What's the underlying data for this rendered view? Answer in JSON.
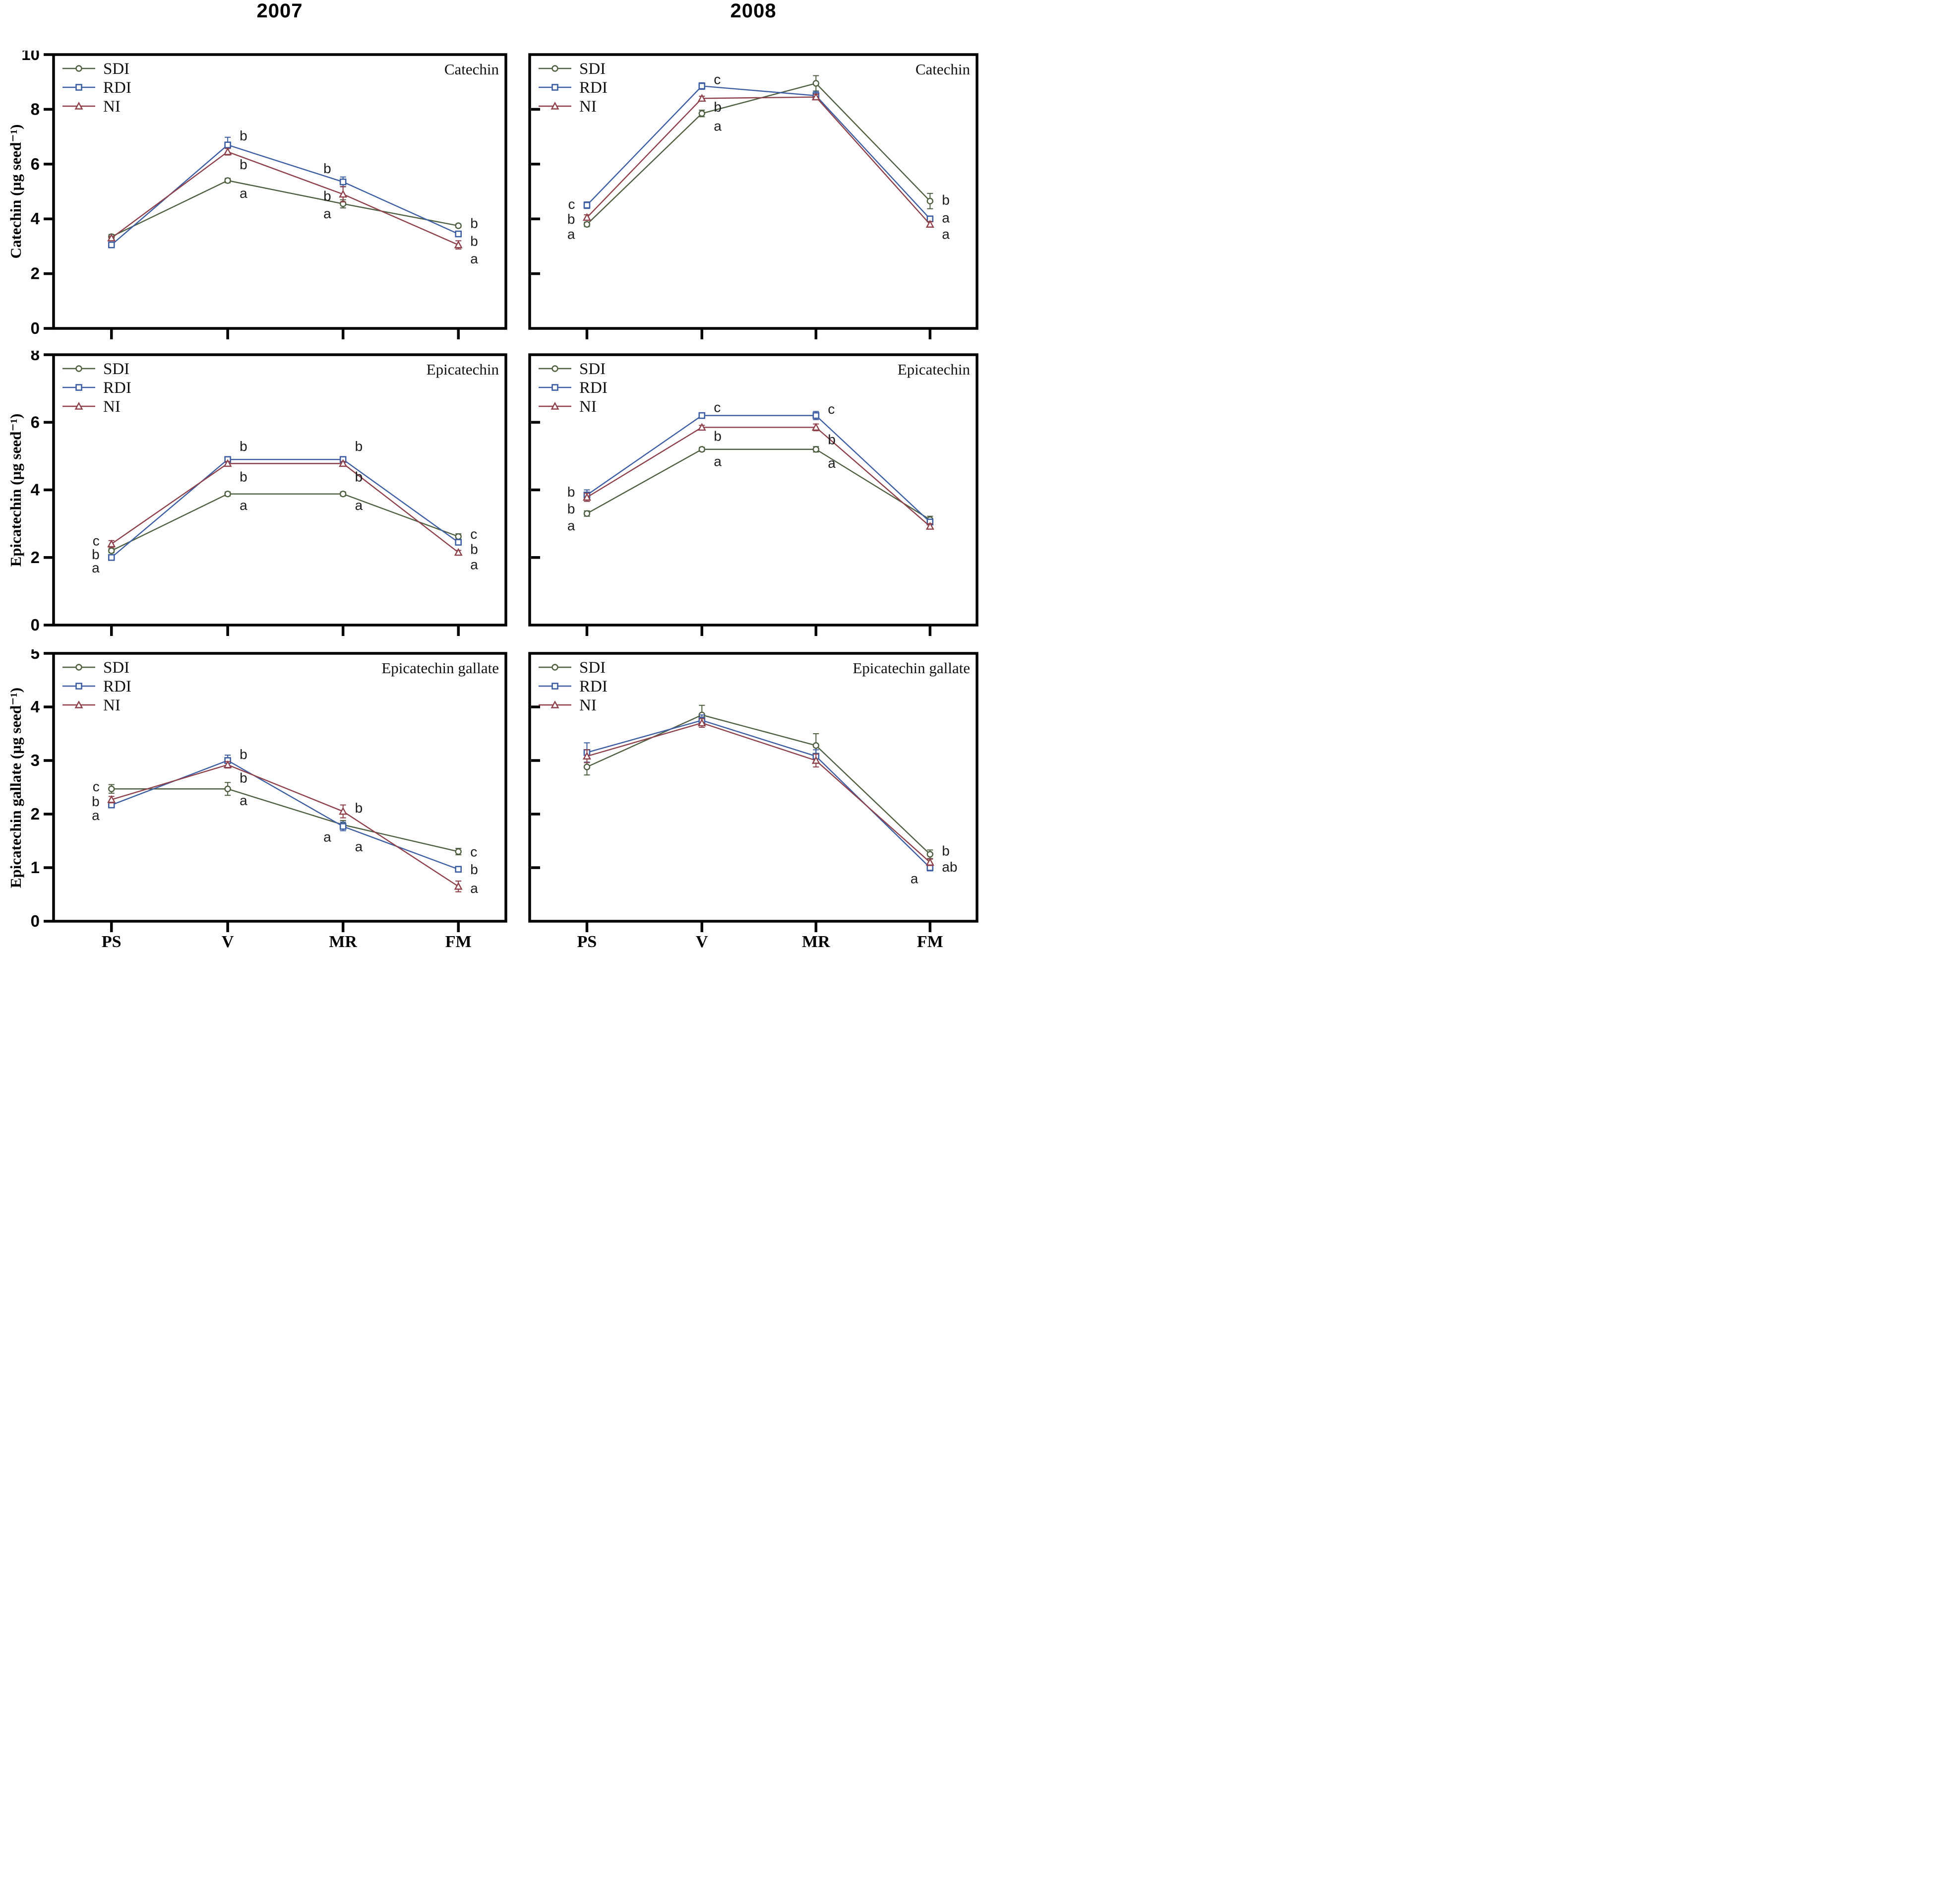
{
  "page": {
    "title_2007": "2007",
    "title_2008": "2008"
  },
  "colors": {
    "sdi": "#4d5e41",
    "rdi": "#3c5da2",
    "ni": "#8d4049",
    "axis": "#000000",
    "letter": "#1c1c1c"
  },
  "categories": [
    "PS",
    "V",
    "MR",
    "FM"
  ],
  "series_names": [
    "SDI",
    "RDI",
    "NI"
  ],
  "row_titles": [
    "Catechin (µg seed⁻¹)",
    "Epicatechin (µg seed⁻¹)",
    "Epicatechin gallate (µg seed⁻¹)"
  ],
  "chart_data": [
    {
      "id": "catechin-2007",
      "type": "line",
      "title": "Catechin",
      "year": "2007",
      "col": 0,
      "row": 0,
      "ylim": [
        0,
        10
      ],
      "yticks": [
        0,
        2,
        4,
        6,
        8,
        10
      ],
      "tick_side": "out",
      "show_ylabels": true,
      "show_xlabels": false,
      "categories": [
        "PS",
        "V",
        "MR",
        "FM"
      ],
      "series": [
        {
          "name": "SDI",
          "marker": "circle",
          "color": "sdi",
          "values": [
            3.35,
            5.4,
            4.55,
            3.75
          ],
          "err": [
            0.08,
            0.08,
            0.15,
            0.06
          ]
        },
        {
          "name": "RDI",
          "marker": "square",
          "color": "rdi",
          "values": [
            3.05,
            6.7,
            5.35,
            3.45
          ],
          "err": [
            0.06,
            0.28,
            0.18,
            0.06
          ]
        },
        {
          "name": "NI",
          "marker": "triangle",
          "color": "ni",
          "values": [
            3.3,
            6.45,
            4.9,
            3.05
          ],
          "err": [
            0.06,
            0.12,
            0.28,
            0.15
          ]
        }
      ],
      "letters": [
        {
          "t": "b",
          "c": 1,
          "y": 7.05,
          "side": "right"
        },
        {
          "t": "b",
          "c": 1,
          "y": 6.0,
          "side": "right"
        },
        {
          "t": "a",
          "c": 1,
          "y": 4.95,
          "side": "right"
        },
        {
          "t": "b",
          "c": 2,
          "y": 5.85,
          "side": "left"
        },
        {
          "t": "b",
          "c": 2,
          "y": 4.85,
          "side": "left"
        },
        {
          "t": "a",
          "c": 2,
          "y": 4.2,
          "side": "left"
        },
        {
          "t": "b",
          "c": 3,
          "y": 3.85,
          "side": "right"
        },
        {
          "t": "b",
          "c": 3,
          "y": 3.2,
          "side": "right"
        },
        {
          "t": "a",
          "c": 3,
          "y": 2.55,
          "side": "right"
        }
      ]
    },
    {
      "id": "catechin-2008",
      "type": "line",
      "title": "Catechin",
      "year": "2008",
      "col": 1,
      "row": 0,
      "ylim": [
        0,
        10
      ],
      "yticks": [
        2,
        4,
        6,
        8
      ],
      "tick_side": "in",
      "show_ylabels": false,
      "show_xlabels": false,
      "categories": [
        "PS",
        "V",
        "MR",
        "FM"
      ],
      "series": [
        {
          "name": "SDI",
          "marker": "circle",
          "color": "sdi",
          "values": [
            3.8,
            7.85,
            8.95,
            4.65
          ],
          "err": [
            0.08,
            0.12,
            0.28,
            0.28
          ]
        },
        {
          "name": "RDI",
          "marker": "square",
          "color": "rdi",
          "values": [
            4.5,
            8.85,
            8.5,
            4.0
          ],
          "err": [
            0.12,
            0.12,
            0.15,
            0.1
          ]
        },
        {
          "name": "NI",
          "marker": "triangle",
          "color": "ni",
          "values": [
            4.05,
            8.4,
            8.45,
            3.8
          ],
          "err": [
            0.1,
            0.08,
            0.1,
            0.1
          ]
        }
      ],
      "letters": [
        {
          "t": "c",
          "c": 0,
          "y": 4.55,
          "side": "left"
        },
        {
          "t": "b",
          "c": 0,
          "y": 4.0,
          "side": "left"
        },
        {
          "t": "a",
          "c": 0,
          "y": 3.45,
          "side": "left"
        },
        {
          "t": "c",
          "c": 1,
          "y": 9.1,
          "side": "right"
        },
        {
          "t": "b",
          "c": 1,
          "y": 8.1,
          "side": "right"
        },
        {
          "t": "a",
          "c": 1,
          "y": 7.4,
          "side": "right"
        },
        {
          "t": "b",
          "c": 3,
          "y": 4.7,
          "side": "right"
        },
        {
          "t": "a",
          "c": 3,
          "y": 4.05,
          "side": "right"
        },
        {
          "t": "a",
          "c": 3,
          "y": 3.45,
          "side": "right"
        }
      ]
    },
    {
      "id": "epicatechin-2007",
      "type": "line",
      "title": "Epicatechin",
      "year": "2007",
      "col": 0,
      "row": 1,
      "ylim": [
        0,
        8
      ],
      "yticks": [
        0,
        2,
        4,
        6,
        8
      ],
      "tick_side": "out",
      "show_ylabels": true,
      "show_xlabels": false,
      "categories": [
        "PS",
        "V",
        "MR",
        "FM"
      ],
      "series": [
        {
          "name": "SDI",
          "marker": "circle",
          "color": "sdi",
          "values": [
            2.2,
            3.88,
            3.88,
            2.62
          ],
          "err": [
            0.06,
            0.06,
            0.06,
            0.08
          ]
        },
        {
          "name": "RDI",
          "marker": "square",
          "color": "rdi",
          "values": [
            2.0,
            4.9,
            4.9,
            2.45
          ],
          "err": [
            0.05,
            0.08,
            0.08,
            0.06
          ]
        },
        {
          "name": "NI",
          "marker": "triangle",
          "color": "ni",
          "values": [
            2.4,
            4.78,
            4.78,
            2.15
          ],
          "err": [
            0.1,
            0.06,
            0.06,
            0.06
          ]
        }
      ],
      "letters": [
        {
          "t": "c",
          "c": 0,
          "y": 2.5,
          "side": "left"
        },
        {
          "t": "b",
          "c": 0,
          "y": 2.1,
          "side": "left"
        },
        {
          "t": "a",
          "c": 0,
          "y": 1.7,
          "side": "left"
        },
        {
          "t": "b",
          "c": 1,
          "y": 5.3,
          "side": "right"
        },
        {
          "t": "b",
          "c": 1,
          "y": 4.4,
          "side": "right"
        },
        {
          "t": "a",
          "c": 1,
          "y": 3.55,
          "side": "right"
        },
        {
          "t": "b",
          "c": 2,
          "y": 5.3,
          "side": "right"
        },
        {
          "t": "b",
          "c": 2,
          "y": 4.4,
          "side": "right"
        },
        {
          "t": "a",
          "c": 2,
          "y": 3.55,
          "side": "right"
        },
        {
          "t": "c",
          "c": 3,
          "y": 2.7,
          "side": "right"
        },
        {
          "t": "b",
          "c": 3,
          "y": 2.25,
          "side": "right"
        },
        {
          "t": "a",
          "c": 3,
          "y": 1.8,
          "side": "right"
        }
      ]
    },
    {
      "id": "epicatechin-2008",
      "type": "line",
      "title": "Epicatechin",
      "year": "2008",
      "col": 1,
      "row": 1,
      "ylim": [
        0,
        8
      ],
      "yticks": [
        2,
        4,
        6
      ],
      "tick_side": "in",
      "show_ylabels": false,
      "show_xlabels": false,
      "categories": [
        "PS",
        "V",
        "MR",
        "FM"
      ],
      "series": [
        {
          "name": "SDI",
          "marker": "circle",
          "color": "sdi",
          "values": [
            3.3,
            5.2,
            5.2,
            3.12
          ],
          "err": [
            0.08,
            0.06,
            0.08,
            0.1
          ]
        },
        {
          "name": "RDI",
          "marker": "square",
          "color": "rdi",
          "values": [
            3.85,
            6.2,
            6.2,
            3.05
          ],
          "err": [
            0.15,
            0.08,
            0.12,
            0.08
          ]
        },
        {
          "name": "NI",
          "marker": "triangle",
          "color": "ni",
          "values": [
            3.78,
            5.85,
            5.85,
            2.92
          ],
          "err": [
            0.12,
            0.06,
            0.1,
            0.08
          ]
        }
      ],
      "letters": [
        {
          "t": "b",
          "c": 0,
          "y": 3.95,
          "side": "left"
        },
        {
          "t": "b",
          "c": 0,
          "y": 3.45,
          "side": "left"
        },
        {
          "t": "a",
          "c": 0,
          "y": 2.95,
          "side": "left"
        },
        {
          "t": "c",
          "c": 1,
          "y": 6.45,
          "side": "right"
        },
        {
          "t": "b",
          "c": 1,
          "y": 5.6,
          "side": "right"
        },
        {
          "t": "a",
          "c": 1,
          "y": 4.85,
          "side": "right"
        },
        {
          "t": "c",
          "c": 2,
          "y": 6.4,
          "side": "right"
        },
        {
          "t": "b",
          "c": 2,
          "y": 5.5,
          "side": "right"
        },
        {
          "t": "a",
          "c": 2,
          "y": 4.8,
          "side": "right"
        }
      ]
    },
    {
      "id": "epicatechin-gallate-2007",
      "type": "line",
      "title": "Epicatechin gallate",
      "year": "2007",
      "col": 0,
      "row": 2,
      "ylim": [
        0,
        5
      ],
      "yticks": [
        0,
        1,
        2,
        3,
        4,
        5
      ],
      "tick_side": "out",
      "show_ylabels": true,
      "show_xlabels": true,
      "categories": [
        "PS",
        "V",
        "MR",
        "FM"
      ],
      "series": [
        {
          "name": "SDI",
          "marker": "circle",
          "color": "sdi",
          "values": [
            2.47,
            2.47,
            1.8,
            1.3
          ],
          "err": [
            0.08,
            0.12,
            0.08,
            0.06
          ]
        },
        {
          "name": "RDI",
          "marker": "square",
          "color": "rdi",
          "values": [
            2.17,
            3.0,
            1.77,
            0.97
          ],
          "err": [
            0.05,
            0.1,
            0.08,
            0.05
          ]
        },
        {
          "name": "NI",
          "marker": "triangle",
          "color": "ni",
          "values": [
            2.27,
            2.92,
            2.05,
            0.65
          ],
          "err": [
            0.06,
            0.06,
            0.12,
            0.1
          ]
        }
      ],
      "letters": [
        {
          "t": "c",
          "c": 0,
          "y": 2.52,
          "side": "left"
        },
        {
          "t": "b",
          "c": 0,
          "y": 2.24,
          "side": "left"
        },
        {
          "t": "a",
          "c": 0,
          "y": 1.98,
          "side": "left"
        },
        {
          "t": "b",
          "c": 1,
          "y": 3.12,
          "side": "right"
        },
        {
          "t": "b",
          "c": 1,
          "y": 2.68,
          "side": "right"
        },
        {
          "t": "a",
          "c": 1,
          "y": 2.26,
          "side": "right"
        },
        {
          "t": "b",
          "c": 2,
          "y": 2.12,
          "side": "right"
        },
        {
          "t": "a",
          "c": 2,
          "y": 1.58,
          "side": "left"
        },
        {
          "t": "a",
          "c": 2,
          "y": 1.4,
          "side": "right"
        },
        {
          "t": "c",
          "c": 3,
          "y": 1.3,
          "side": "right"
        },
        {
          "t": "b",
          "c": 3,
          "y": 0.97,
          "side": "right"
        },
        {
          "t": "a",
          "c": 3,
          "y": 0.62,
          "side": "right"
        }
      ]
    },
    {
      "id": "epicatechin-gallate-2008",
      "type": "line",
      "title": "Epicatechin gallate",
      "year": "2008",
      "col": 1,
      "row": 2,
      "ylim": [
        0,
        5
      ],
      "yticks": [
        1,
        2,
        3,
        4
      ],
      "tick_side": "in",
      "show_ylabels": false,
      "show_xlabels": true,
      "categories": [
        "PS",
        "V",
        "MR",
        "FM"
      ],
      "series": [
        {
          "name": "SDI",
          "marker": "circle",
          "color": "sdi",
          "values": [
            2.88,
            3.85,
            3.28,
            1.25
          ],
          "err": [
            0.15,
            0.18,
            0.22,
            0.08
          ]
        },
        {
          "name": "RDI",
          "marker": "square",
          "color": "rdi",
          "values": [
            3.15,
            3.75,
            3.08,
            1.0
          ],
          "err": [
            0.18,
            0.1,
            0.12,
            0.06
          ]
        },
        {
          "name": "NI",
          "marker": "triangle",
          "color": "ni",
          "values": [
            3.08,
            3.7,
            3.0,
            1.1
          ],
          "err": [
            0.12,
            0.08,
            0.12,
            0.06
          ]
        }
      ],
      "letters": [
        {
          "t": "b",
          "c": 3,
          "y": 1.32,
          "side": "right"
        },
        {
          "t": "ab",
          "c": 3,
          "y": 1.02,
          "side": "right"
        },
        {
          "t": "a",
          "c": 3,
          "y": 0.8,
          "side": "left"
        }
      ]
    }
  ]
}
